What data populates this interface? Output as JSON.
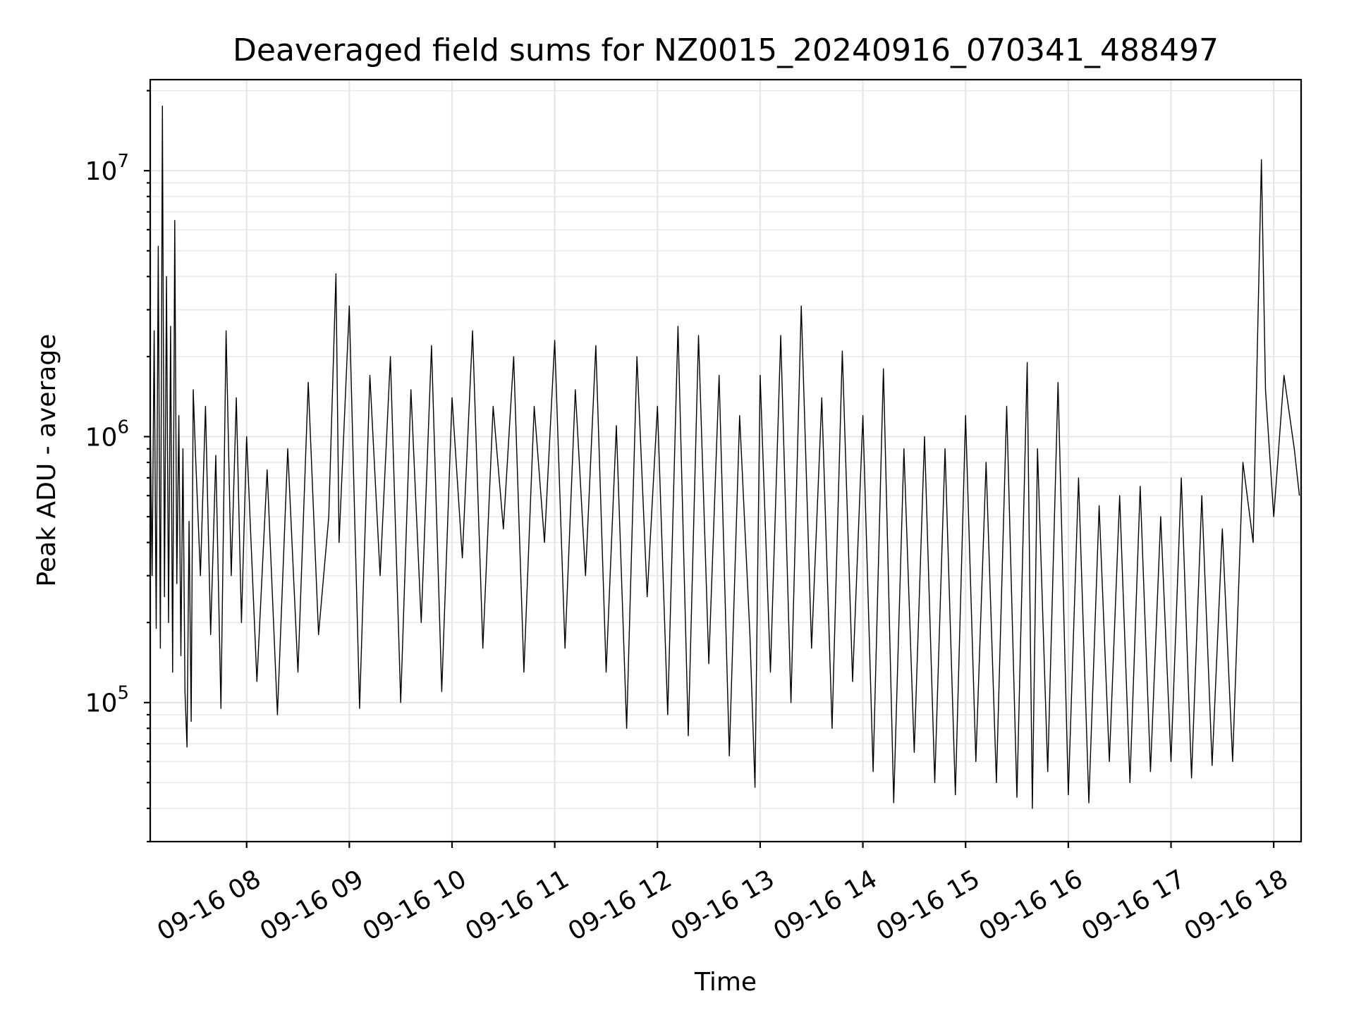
{
  "chart_data": {
    "type": "line",
    "title": "Deaveraged field sums for NZ0015_20240916_070341_488497",
    "xlabel": "Time",
    "ylabel": "Peak ADU - average",
    "xscale": "time",
    "yscale": "log",
    "xlim": [
      "2024-09-16 07:03:41",
      "2024-09-16 18:16:00"
    ],
    "ylim": [
      30000,
      22000000
    ],
    "grid": true,
    "legend": "none",
    "line_color": "#000000",
    "x_tick_labels": [
      "09-16 08",
      "09-16 09",
      "09-16 10",
      "09-16 11",
      "09-16 12",
      "09-16 13",
      "09-16 14",
      "09-16 15",
      "09-16 16",
      "09-16 17",
      "09-16 18"
    ],
    "y_tick_labels": [
      {
        "base": "10",
        "exp": "5",
        "value": 100000
      },
      {
        "base": "10",
        "exp": "6",
        "value": 1000000
      },
      {
        "base": "10",
        "exp": "7",
        "value": 10000000
      }
    ],
    "series": [
      {
        "x_hours": [
          7.06,
          7.08,
          7.1,
          7.12,
          7.14,
          7.16,
          7.18,
          7.2,
          7.22,
          7.24,
          7.26,
          7.28,
          7.3,
          7.32,
          7.34,
          7.36,
          7.38,
          7.4,
          7.42,
          7.44,
          7.46,
          7.48,
          7.5,
          7.55,
          7.6,
          7.65,
          7.7,
          7.75,
          7.8,
          7.85,
          7.9,
          7.95,
          8.0,
          8.1,
          8.2,
          8.3,
          8.4,
          8.5,
          8.6,
          8.7,
          8.8,
          8.87,
          8.9,
          9.0,
          9.1,
          9.2,
          9.3,
          9.4,
          9.5,
          9.6,
          9.7,
          9.8,
          9.9,
          10.0,
          10.1,
          10.2,
          10.3,
          10.4,
          10.5,
          10.6,
          10.7,
          10.8,
          10.9,
          11.0,
          11.1,
          11.2,
          11.3,
          11.4,
          11.5,
          11.6,
          11.7,
          11.8,
          11.9,
          12.0,
          12.1,
          12.2,
          12.3,
          12.4,
          12.5,
          12.6,
          12.7,
          12.8,
          12.9,
          12.95,
          13.0,
          13.1,
          13.2,
          13.3,
          13.4,
          13.5,
          13.6,
          13.7,
          13.8,
          13.9,
          14.0,
          14.1,
          14.2,
          14.3,
          14.4,
          14.5,
          14.6,
          14.7,
          14.8,
          14.9,
          15.0,
          15.1,
          15.2,
          15.3,
          15.4,
          15.5,
          15.6,
          15.65,
          15.7,
          15.8,
          15.9,
          16.0,
          16.1,
          16.2,
          16.3,
          16.4,
          16.5,
          16.6,
          16.7,
          16.8,
          16.9,
          17.0,
          17.1,
          17.2,
          17.3,
          17.4,
          17.5,
          17.6,
          17.7,
          17.8,
          17.88,
          17.92,
          18.0,
          18.1,
          18.2,
          18.25
        ],
        "values": [
          1300000,
          300000,
          2500000,
          190000,
          5200000,
          160000,
          17500000,
          250000,
          4000000,
          200000,
          2600000,
          130000,
          6500000,
          280000,
          1200000,
          150000,
          900000,
          110000,
          68000,
          480000,
          85000,
          1500000,
          900000,
          300000,
          1300000,
          180000,
          850000,
          95000,
          2500000,
          300000,
          1400000,
          200000,
          1000000,
          120000,
          750000,
          90000,
          900000,
          130000,
          1600000,
          180000,
          500000,
          4100000,
          400000,
          3100000,
          95000,
          1700000,
          300000,
          2000000,
          100000,
          1500000,
          200000,
          2200000,
          110000,
          1400000,
          350000,
          2500000,
          160000,
          1300000,
          450000,
          2000000,
          130000,
          1300000,
          400000,
          2300000,
          160000,
          1500000,
          300000,
          2200000,
          130000,
          1100000,
          80000,
          2000000,
          250000,
          1300000,
          90000,
          2600000,
          75000,
          2400000,
          140000,
          1700000,
          63000,
          1200000,
          180000,
          48000,
          1700000,
          130000,
          2400000,
          100000,
          3100000,
          160000,
          1400000,
          80000,
          2100000,
          120000,
          1200000,
          55000,
          1800000,
          42000,
          900000,
          65000,
          1000000,
          50000,
          900000,
          45000,
          1200000,
          60000,
          800000,
          50000,
          1300000,
          44000,
          1900000,
          40000,
          900000,
          55000,
          1600000,
          45000,
          700000,
          42000,
          550000,
          60000,
          600000,
          50000,
          650000,
          55000,
          500000,
          60000,
          700000,
          52000,
          600000,
          58000,
          450000,
          60000,
          800000,
          400000,
          11000000,
          1500000,
          500000,
          1700000,
          900000,
          600000
        ]
      }
    ]
  }
}
